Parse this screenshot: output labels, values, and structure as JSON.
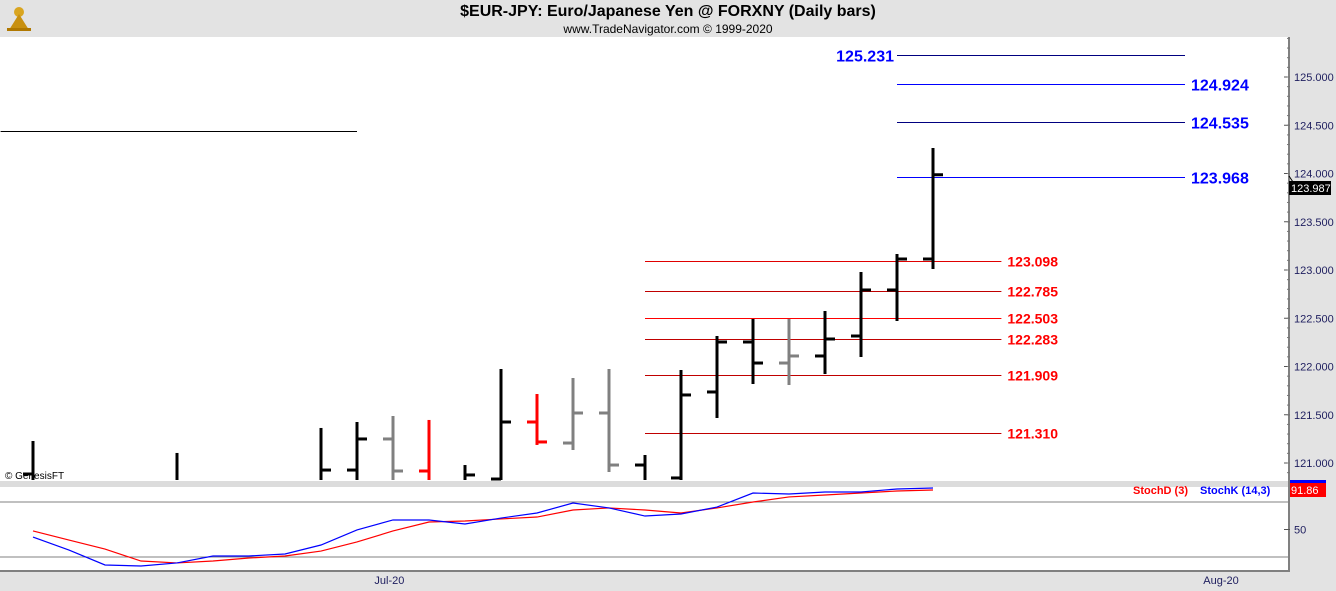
{
  "header": {
    "title": "$EUR-JPY:  Euro/Japanese Yen @ FORXNY  (Daily bars)",
    "subtitle": "www.TradeNavigator.com © 1999-2020"
  },
  "copyright": "© GenesisFT",
  "chart_data": [
    {
      "type": "ohlc-bar",
      "ylim": [
        120.81,
        125.41
      ],
      "yticks": [
        "125.000",
        "124.500",
        "124.000",
        "123.500",
        "123.000",
        "122.500",
        "122.000",
        "121.500",
        "121.000"
      ],
      "last_price": "123.987",
      "xaxis": {
        "labels": [
          {
            "label": "Jul-20",
            "day": 9.9
          },
          {
            "label": "Aug-20",
            "day": 33
          }
        ]
      },
      "bar_colors": {
        "up": "#000000",
        "down": "#ff0000",
        "neutral": "#808080"
      },
      "bars": [
        {
          "day": 0,
          "high": 121.228,
          "open": 120.886,
          "close": null,
          "low": null,
          "color": "up"
        },
        {
          "day": 4,
          "high": 121.104,
          "open": null,
          "close": null,
          "low": null,
          "color": "up"
        },
        {
          "day": 8,
          "high": 121.363,
          "open": null,
          "close": 120.927,
          "low": null,
          "color": "up"
        },
        {
          "day": 9,
          "high": 121.425,
          "open": 120.927,
          "close": 121.249,
          "low": null,
          "color": "up"
        },
        {
          "day": 10,
          "high": 121.487,
          "open": 121.249,
          "close": 120.917,
          "low": null,
          "color": "neutral"
        },
        {
          "day": 11,
          "high": 121.446,
          "open": 120.917,
          "close": null,
          "low": null,
          "color": "down"
        },
        {
          "day": 12,
          "high": 120.979,
          "open": null,
          "close": 120.876,
          "low": null,
          "color": "up"
        },
        {
          "day": 13,
          "high": 121.974,
          "open": 120.834,
          "close": 121.425,
          "low": null,
          "color": "up"
        },
        {
          "day": 14,
          "high": 121.715,
          "open": 121.425,
          "close": 121.218,
          "low": 121.187,
          "color": "down"
        },
        {
          "day": 15,
          "high": 121.881,
          "open": 121.207,
          "close": 121.518,
          "low": 121.135,
          "color": "neutral"
        },
        {
          "day": 16,
          "high": 121.974,
          "open": 121.518,
          "close": 120.979,
          "low": 120.907,
          "color": "neutral"
        },
        {
          "day": 17,
          "high": 121.083,
          "open": 120.979,
          "close": null,
          "low": null,
          "color": "up"
        },
        {
          "day": 18,
          "high": 121.964,
          "open": 120.845,
          "close": 121.705,
          "low": null,
          "color": "up"
        },
        {
          "day": 19,
          "high": 122.316,
          "open": 121.736,
          "close": 122.254,
          "low": 121.466,
          "color": "up"
        },
        {
          "day": 20,
          "high": 122.492,
          "open": 122.254,
          "close": 122.036,
          "low": 121.819,
          "color": "up"
        },
        {
          "day": 21,
          "high": 122.492,
          "open": 122.036,
          "close": 122.109,
          "low": 121.808,
          "color": "neutral"
        },
        {
          "day": 22,
          "high": 122.575,
          "open": 122.109,
          "close": 122.285,
          "low": 121.922,
          "color": "up"
        },
        {
          "day": 23,
          "high": 122.979,
          "open": 122.316,
          "close": 122.793,
          "low": 122.098,
          "color": "up"
        },
        {
          "day": 24,
          "high": 123.166,
          "open": 122.793,
          "close": 123.114,
          "low": 122.472,
          "color": "up"
        },
        {
          "day": 25,
          "high": 124.264,
          "open": 123.114,
          "close": 123.987,
          "low": 123.01,
          "color": "up"
        }
      ],
      "levels": [
        {
          "price": 125.231,
          "label": "125.231",
          "color": "#0000ff",
          "line": "#000080",
          "from": 24,
          "to": 32,
          "label_side": "left"
        },
        {
          "price": 124.924,
          "label": "124.924",
          "color": "#0000ff",
          "line": "#0000ff",
          "from": 24,
          "to": 32,
          "label_side": "right"
        },
        {
          "price": 124.535,
          "label": "124.535",
          "color": "#0000ff",
          "line": "#000080",
          "from": 24,
          "to": 32,
          "label_side": "right"
        },
        {
          "price": 123.968,
          "label": "123.968",
          "color": "#0000ff",
          "line": "#0000ff",
          "from": 24,
          "to": 32,
          "label_side": "right"
        },
        {
          "price": 123.098,
          "label": "123.098",
          "color": "#ff0000",
          "line": "#e00000",
          "from": 17,
          "to": 26.9,
          "label_side": "right"
        },
        {
          "price": 122.785,
          "label": "122.785",
          "color": "#ff0000",
          "line": "#c00000",
          "from": 17,
          "to": 26.9,
          "label_side": "right"
        },
        {
          "price": 122.503,
          "label": "122.503",
          "color": "#ff0000",
          "line": "#ff0000",
          "from": 17,
          "to": 26.9,
          "label_side": "right"
        },
        {
          "price": 122.283,
          "label": "122.283",
          "color": "#ff0000",
          "line": "#c00000",
          "from": 17,
          "to": 26.9,
          "label_side": "right"
        },
        {
          "price": 121.909,
          "label": "121.909",
          "color": "#ff0000",
          "line": "#c00000",
          "from": 17,
          "to": 26.9,
          "label_side": "right"
        },
        {
          "price": 121.31,
          "label": "121.310",
          "color": "#ff0000",
          "line": "#c00000",
          "from": 17,
          "to": 26.9,
          "label_side": "right"
        },
        {
          "price": 124.44,
          "label": "",
          "color": "#000000",
          "line": "#000000",
          "from": -0.9,
          "to": 9,
          "label_side": "none"
        }
      ]
    },
    {
      "type": "line",
      "ylim": [
        0,
        100
      ],
      "yticks": [
        "50"
      ],
      "guides": [
        20,
        80
      ],
      "last_value": "91.86",
      "series": [
        {
          "name": "StochD (3)",
          "color": "#ff0000",
          "values": [
            48.4,
            38.5,
            28.7,
            15.6,
            13.5,
            15.6,
            18.9,
            21.1,
            26.5,
            36.4,
            48.4,
            58.2,
            59.3,
            61.5,
            63.6,
            71.3,
            73.5,
            71.3,
            68,
            73.5,
            80,
            85.5,
            87.6,
            89.8,
            92,
            93.1
          ]
        },
        {
          "name": "StochK (14,3)",
          "color": "#0000ff",
          "values": [
            41.8,
            27.6,
            11.3,
            10.2,
            13.5,
            21.1,
            21.1,
            23.3,
            33.1,
            49.5,
            60.4,
            60.4,
            56,
            62.5,
            68,
            78.9,
            73.5,
            64.7,
            66.9,
            74.5,
            89.8,
            88.7,
            90.9,
            90.9,
            94.2,
            95.3
          ]
        }
      ]
    }
  ]
}
